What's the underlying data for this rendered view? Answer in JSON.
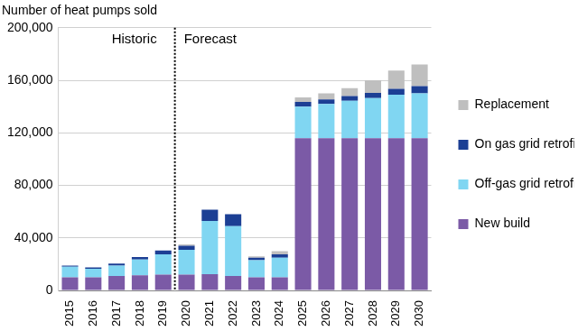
{
  "chart_data": {
    "type": "bar",
    "stacked": true,
    "ylabel": "Number of heat pumps sold",
    "categories": [
      "2015",
      "2016",
      "2017",
      "2018",
      "2019",
      "2020",
      "2021",
      "2022",
      "2023",
      "2024",
      "2025",
      "2026",
      "2027",
      "2028",
      "2029",
      "2030"
    ],
    "series": [
      {
        "name": "New build",
        "color": "#7B5AA6",
        "values": [
          10000,
          10000,
          11000,
          11500,
          12000,
          12000,
          12500,
          11000,
          10000,
          10000,
          116000,
          116000,
          116000,
          116000,
          116000,
          116000
        ]
      },
      {
        "name": "Off-gas grid retrofits",
        "color": "#80D6F2",
        "values": [
          8000,
          6500,
          8000,
          12000,
          15500,
          19000,
          40500,
          38000,
          13000,
          15000,
          24000,
          26000,
          28500,
          30500,
          33000,
          34000
        ]
      },
      {
        "name": "On gas grid retrofits",
        "color": "#1C3F94",
        "values": [
          1000,
          1000,
          1500,
          2000,
          3000,
          3000,
          8500,
          9000,
          2000,
          2500,
          3500,
          3500,
          3500,
          4000,
          4500,
          5500
        ]
      },
      {
        "name": "Replacement",
        "color": "#BFBFBF",
        "values": [
          0,
          0,
          0,
          0,
          0,
          1000,
          0,
          0,
          1000,
          2500,
          3500,
          4500,
          6000,
          9500,
          14000,
          16500
        ]
      }
    ],
    "ylim": [
      0,
      200000
    ],
    "yticks": [
      0,
      {
        "value": 40000,
        "label": "40,000"
      },
      {
        "value": 80000,
        "label": "80,000"
      },
      {
        "value": 120000,
        "label": "120,000"
      },
      {
        "value": 160000,
        "label": "160,000"
      },
      {
        "value": 200000,
        "label": "200,000"
      }
    ],
    "grid": true,
    "legend": "right",
    "divider": [
      "2019",
      "2020"
    ],
    "annotations": [
      {
        "text": "Historic",
        "align": "left"
      },
      {
        "text": "Forecast",
        "align": "right"
      }
    ]
  }
}
